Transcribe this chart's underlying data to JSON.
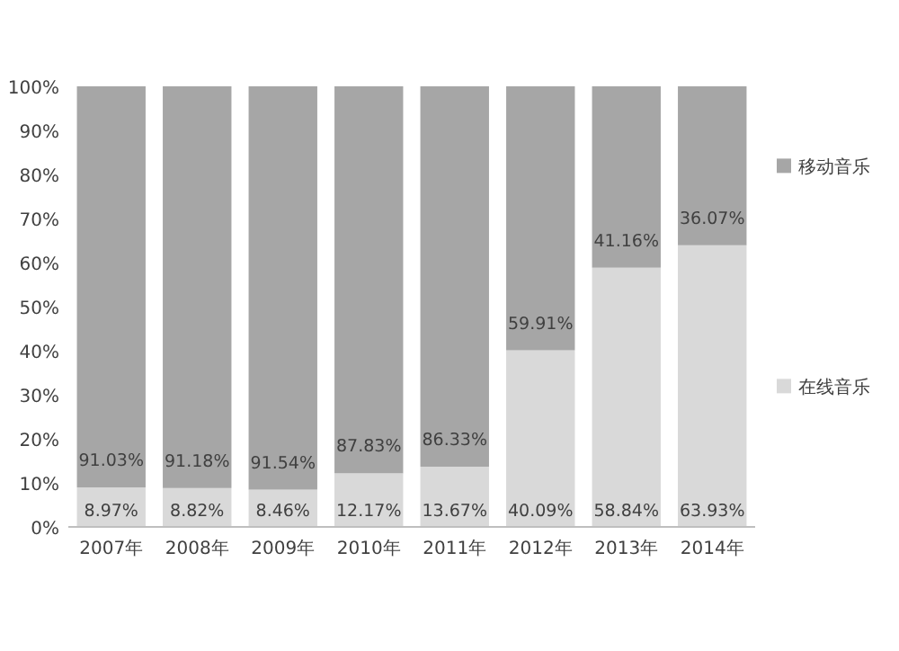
{
  "chart_data": {
    "type": "bar",
    "stacked": true,
    "categories": [
      "2007年",
      "2008年",
      "2009年",
      "2010年",
      "2011年",
      "2012年",
      "2013年",
      "2014年"
    ],
    "series": [
      {
        "name": "在线音乐",
        "color": "#d9d9d9",
        "values": [
          8.97,
          8.82,
          8.46,
          12.17,
          13.67,
          40.09,
          58.84,
          63.93
        ],
        "value_labels": [
          "8.97%",
          "8.82%",
          "8.46%",
          "12.17%",
          "13.67%",
          "40.09%",
          "58.84%",
          "63.93%"
        ]
      },
      {
        "name": "移动音乐",
        "color": "#a6a6a6",
        "values": [
          91.03,
          91.18,
          91.54,
          87.83,
          86.33,
          59.91,
          41.16,
          36.07
        ],
        "value_labels": [
          "91.03%",
          "91.18%",
          "91.54%",
          "87.83%",
          "86.33%",
          "59.91%",
          "41.16%",
          "36.07%"
        ]
      }
    ],
    "ylim": [
      0,
      100
    ],
    "yticks": [
      {
        "value": 0,
        "label": "0%"
      },
      {
        "value": 10,
        "label": "10%"
      },
      {
        "value": 20,
        "label": "20%"
      },
      {
        "value": 30,
        "label": "30%"
      },
      {
        "value": 40,
        "label": "40%"
      },
      {
        "value": 50,
        "label": "50%"
      },
      {
        "value": 60,
        "label": "60%"
      },
      {
        "value": 70,
        "label": "70%"
      },
      {
        "value": 80,
        "label": "80%"
      },
      {
        "value": 90,
        "label": "90%"
      },
      {
        "value": 100,
        "label": "100%"
      }
    ],
    "legend": "right"
  }
}
